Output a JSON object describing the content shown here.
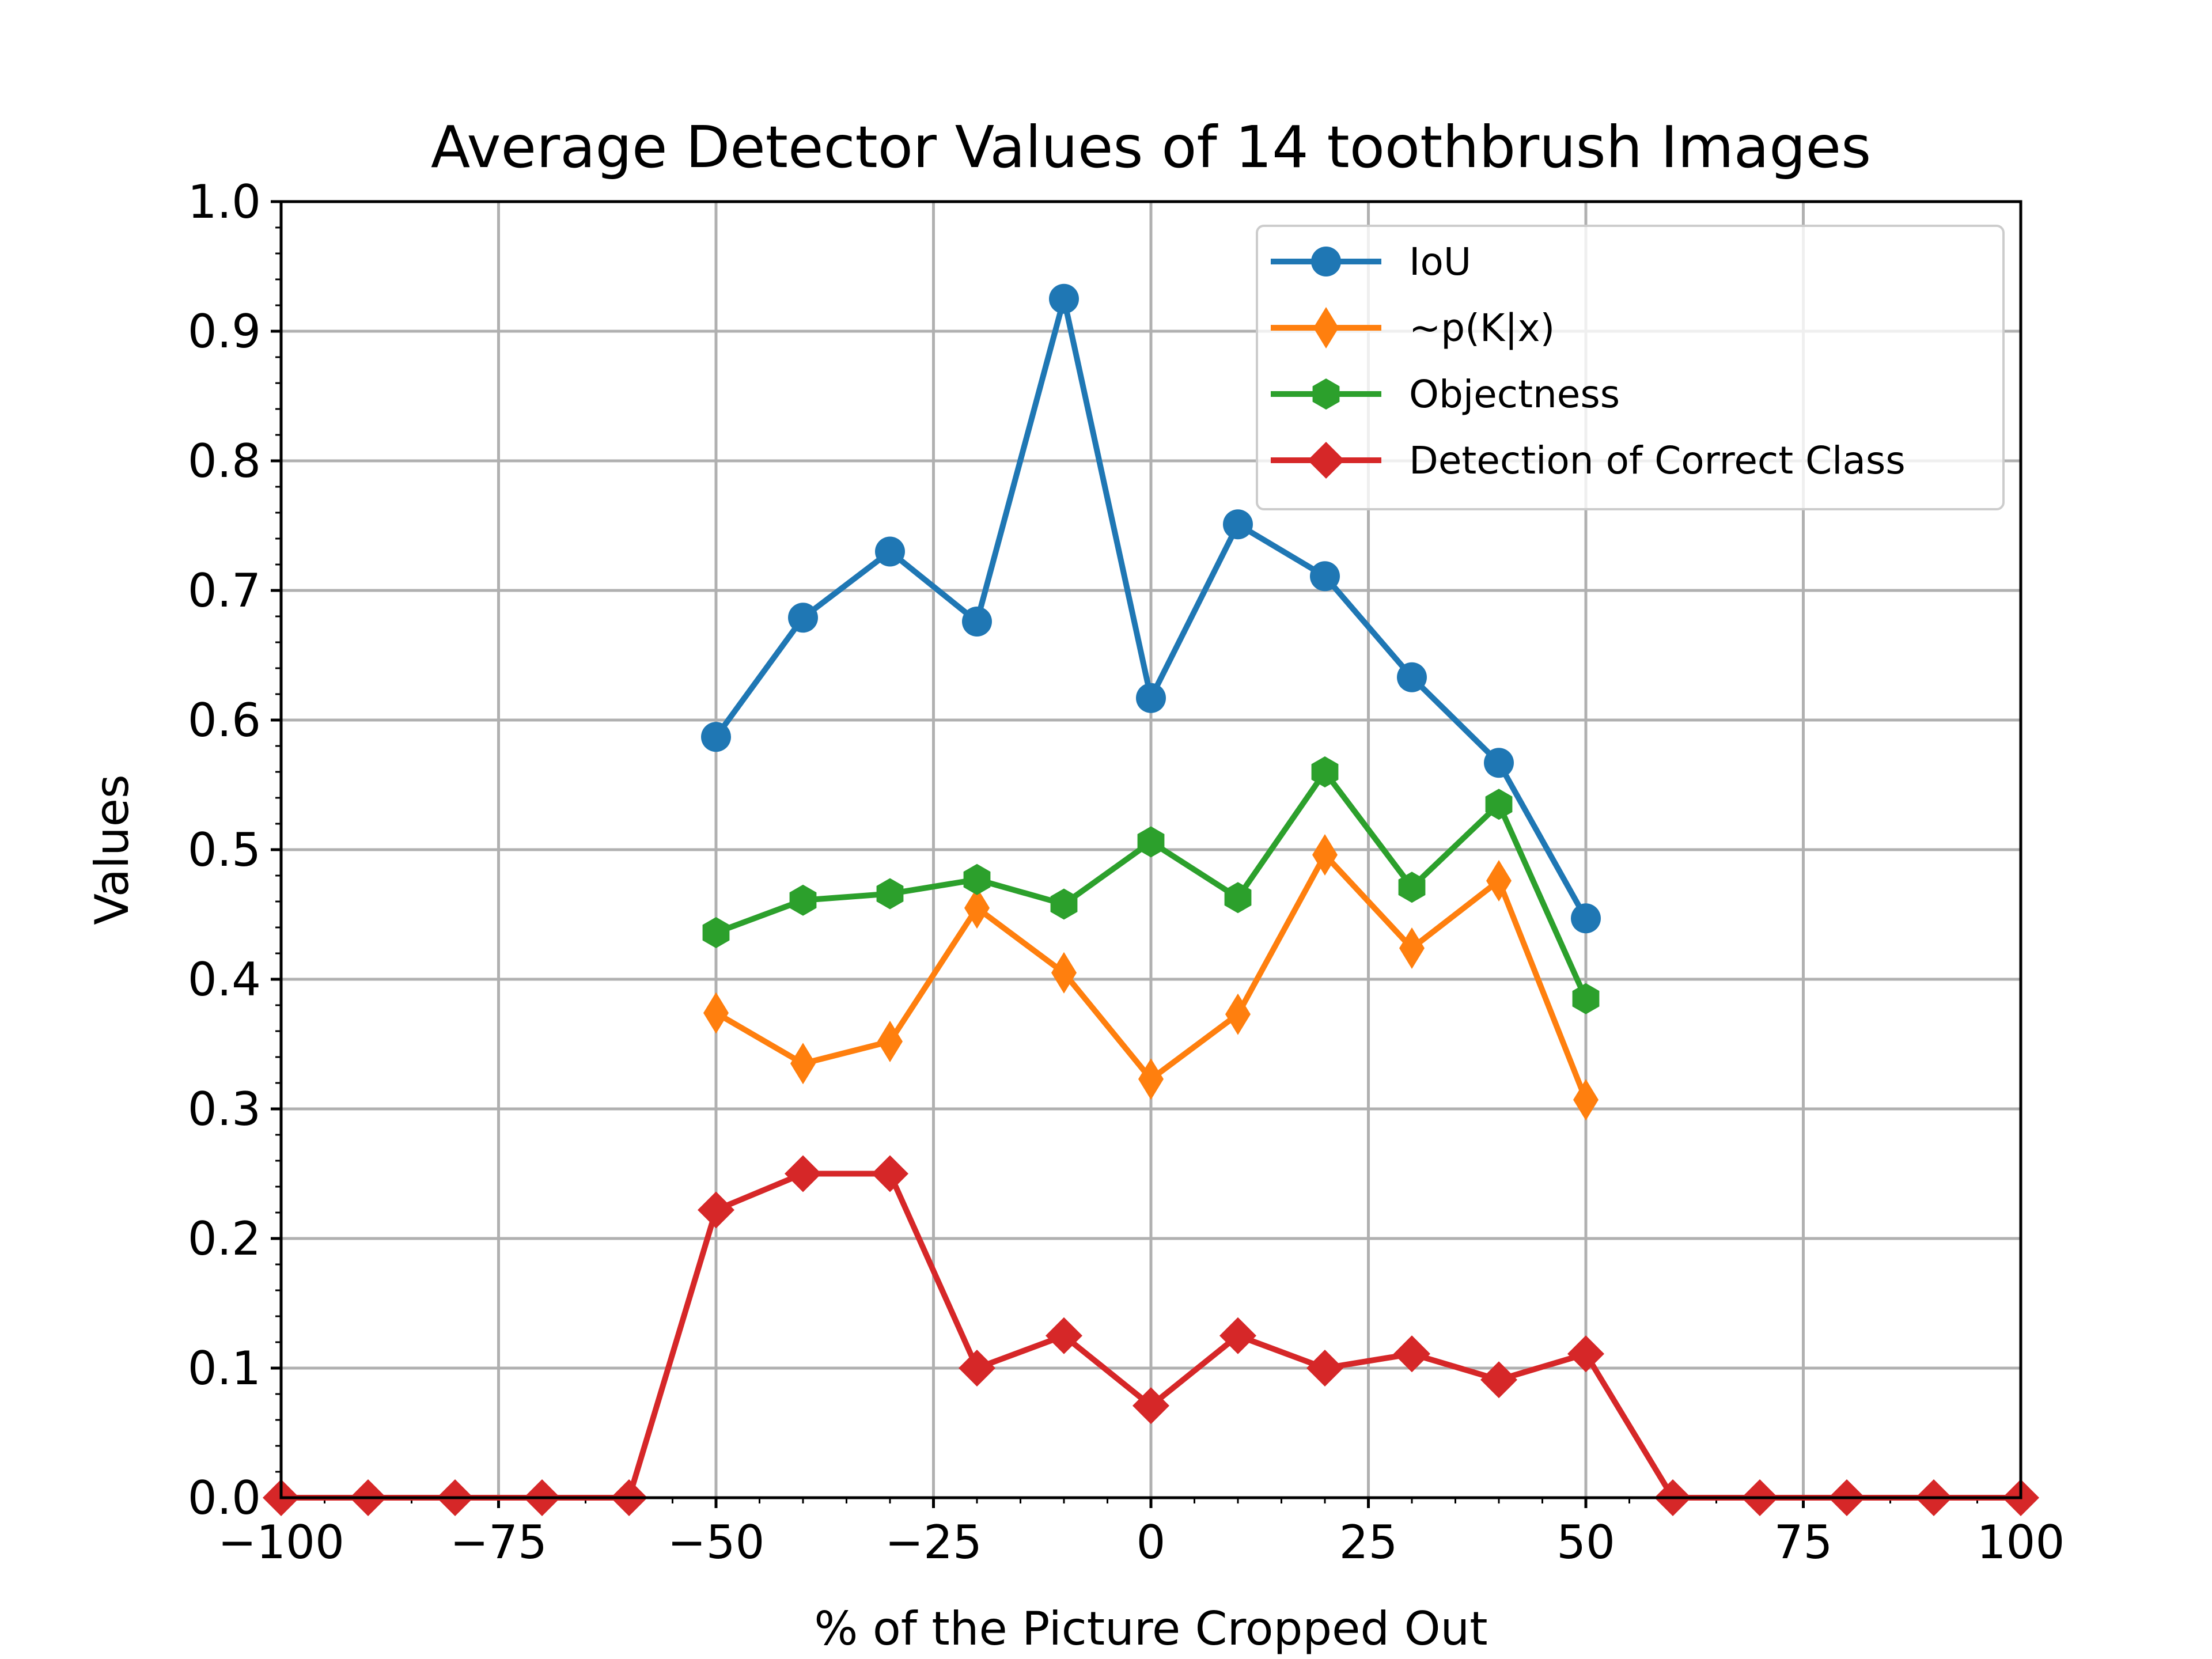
{
  "chart_data": {
    "type": "line",
    "title": "Average Detector Values of 14 toothbrush Images",
    "xlabel": "% of the Picture Cropped Out",
    "ylabel": "Values",
    "xlim": [
      -100,
      100
    ],
    "ylim": [
      0,
      1
    ],
    "xticks": [
      -100,
      -75,
      -50,
      -25,
      0,
      25,
      50,
      75,
      100
    ],
    "xtick_labels": [
      "−100",
      "−75",
      "−50",
      "−25",
      "0",
      "25",
      "50",
      "75",
      "100"
    ],
    "yticks": [
      0,
      0.1,
      0.2,
      0.3,
      0.4,
      0.5,
      0.6,
      0.7,
      0.8,
      0.9,
      1.0
    ],
    "ytick_labels": [
      "0.0",
      "0.1",
      "0.2",
      "0.3",
      "0.4",
      "0.5",
      "0.6",
      "0.7",
      "0.8",
      "0.9",
      "1.0"
    ],
    "grid": true,
    "legend_position": "top-right",
    "series": [
      {
        "name": "IoU",
        "color": "#1f77b4",
        "marker": "circle",
        "x": [
          -50,
          -40,
          -30,
          -20,
          -10,
          0,
          10,
          20,
          30,
          40,
          50
        ],
        "y": [
          0.587,
          0.679,
          0.73,
          0.676,
          0.925,
          0.617,
          0.751,
          0.711,
          0.633,
          0.567,
          0.447
        ]
      },
      {
        "name": "~p(K|x)",
        "color": "#ff7f0e",
        "marker": "thin-diamond",
        "x": [
          -50,
          -40,
          -30,
          -20,
          -10,
          0,
          10,
          20,
          30,
          40,
          50
        ],
        "y": [
          0.374,
          0.335,
          0.352,
          0.455,
          0.405,
          0.323,
          0.373,
          0.496,
          0.424,
          0.476,
          0.307
        ]
      },
      {
        "name": "Objectness",
        "color": "#2ca02c",
        "marker": "hexagon",
        "x": [
          -50,
          -40,
          -30,
          -20,
          -10,
          0,
          10,
          20,
          30,
          40,
          50
        ],
        "y": [
          0.436,
          0.461,
          0.466,
          0.477,
          0.458,
          0.506,
          0.463,
          0.56,
          0.471,
          0.535,
          0.385
        ]
      },
      {
        "name": "Detection of Correct Class",
        "color": "#d62728",
        "marker": "diamond",
        "x": [
          -100,
          -90,
          -80,
          -70,
          -60,
          -50,
          -40,
          -30,
          -20,
          -10,
          0,
          10,
          20,
          30,
          40,
          50,
          60,
          70,
          80,
          90,
          100
        ],
        "y": [
          0,
          0,
          0,
          0,
          0,
          0.222,
          0.25,
          0.25,
          0.1,
          0.125,
          0.071,
          0.125,
          0.1,
          0.111,
          0.091,
          0.111,
          0,
          0,
          0,
          0,
          0
        ]
      }
    ]
  }
}
